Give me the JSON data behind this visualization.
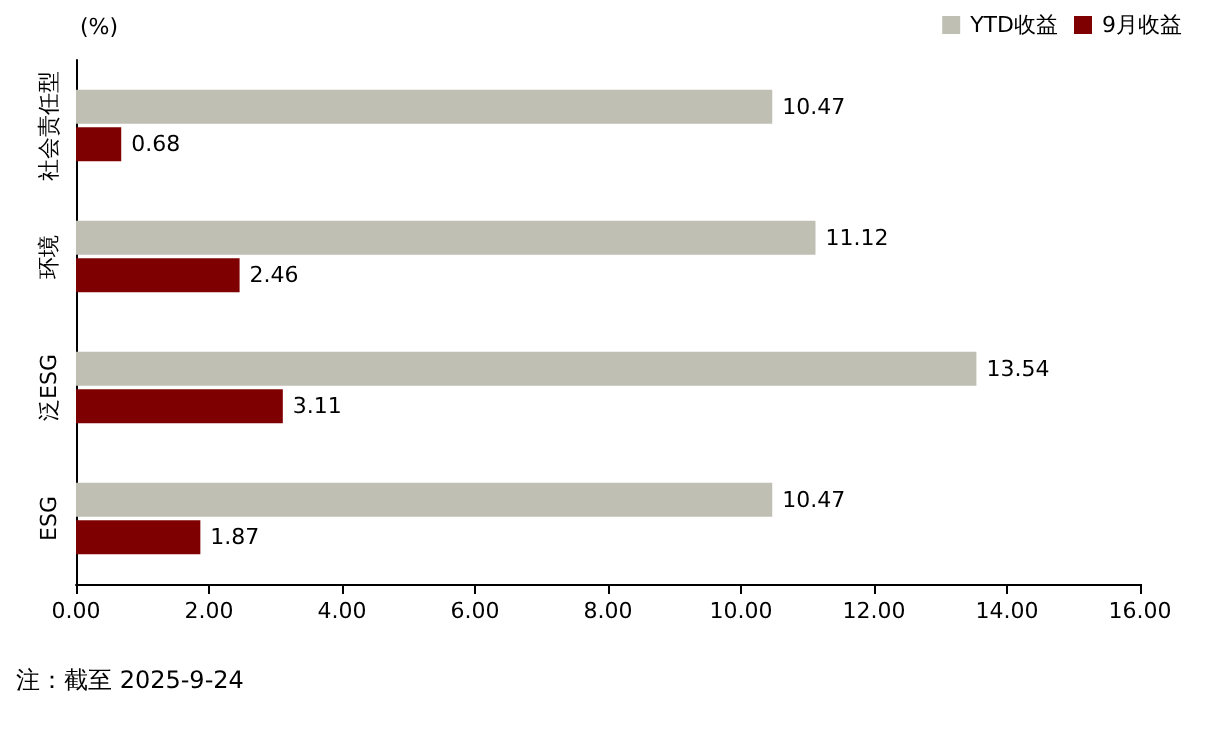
{
  "chart_data": {
    "type": "bar",
    "orientation": "horizontal",
    "ylabel": "(%)",
    "categories": [
      "社会责任型",
      "环境",
      "泛ESG",
      "ESG"
    ],
    "series": [
      {
        "name": "YTD收益",
        "color": "#bfbfb4",
        "values": [
          10.47,
          11.12,
          13.54,
          10.47
        ],
        "value_labels": [
          "10.47",
          "11.12",
          "13.54",
          "10.47"
        ]
      },
      {
        "name": "9月收益",
        "color": "#7f0000",
        "values": [
          0.68,
          2.46,
          3.11,
          1.87
        ],
        "value_labels": [
          "0.68",
          "2.46",
          "3.11",
          "1.87"
        ]
      }
    ],
    "xlim": [
      0,
      16
    ],
    "xticks": [
      {
        "value": 0,
        "label": "0.00"
      },
      {
        "value": 2,
        "label": "2.00"
      },
      {
        "value": 4,
        "label": "4.00"
      },
      {
        "value": 6,
        "label": "6.00"
      },
      {
        "value": 8,
        "label": "8.00"
      },
      {
        "value": 10,
        "label": "10.00"
      },
      {
        "value": 12,
        "label": "12.00"
      },
      {
        "value": 14,
        "label": "14.00"
      },
      {
        "value": 16,
        "label": "16.00"
      }
    ],
    "legend": "top right",
    "grid": false,
    "annotations": [
      "注：截至 2025-9-24"
    ]
  }
}
